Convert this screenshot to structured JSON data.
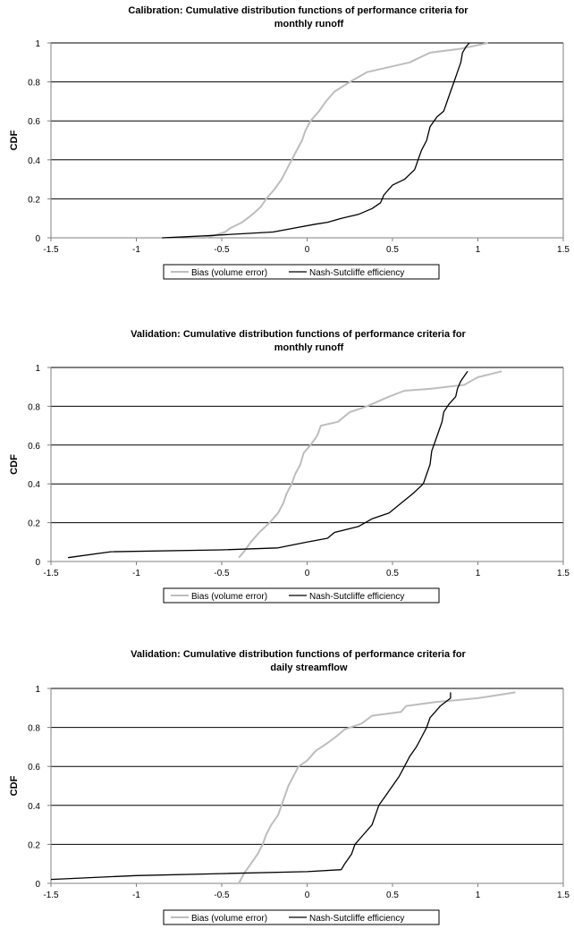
{
  "colors": {
    "bias": "#bdbdbd",
    "nse": "#000000",
    "grid": "#000000",
    "axis": "#808080"
  },
  "chart_data": [
    {
      "type": "line",
      "title_line1": "Calibration:    Cumulative distribution functions of performance criteria for",
      "title_line2": "monthly runoff",
      "xlabel": "",
      "ylabel": "CDF",
      "xlim": [
        -1.5,
        1.5
      ],
      "ylim": [
        0,
        1
      ],
      "x_ticks": [
        "-1.5",
        "-1",
        "-0.5",
        "0",
        "0.5",
        "1",
        "1.5"
      ],
      "y_ticks": [
        "0",
        "0.2",
        "0.4",
        "0.6",
        "0.8",
        "1"
      ],
      "grid": "horizontal",
      "legend_position": "bottom",
      "series": [
        {
          "name": "Bias (volume error)",
          "color": "bias",
          "points": [
            [
              -0.6,
              0.0
            ],
            [
              -0.55,
              0.01
            ],
            [
              -0.48,
              0.03
            ],
            [
              -0.45,
              0.05
            ],
            [
              -0.38,
              0.08
            ],
            [
              -0.32,
              0.12
            ],
            [
              -0.27,
              0.16
            ],
            [
              -0.24,
              0.2
            ],
            [
              -0.19,
              0.25
            ],
            [
              -0.15,
              0.3
            ],
            [
              -0.12,
              0.35
            ],
            [
              -0.09,
              0.4
            ],
            [
              -0.06,
              0.45
            ],
            [
              -0.03,
              0.5
            ],
            [
              -0.01,
              0.55
            ],
            [
              0.02,
              0.6
            ],
            [
              0.07,
              0.65
            ],
            [
              0.11,
              0.7
            ],
            [
              0.16,
              0.75
            ],
            [
              0.25,
              0.8
            ],
            [
              0.35,
              0.85
            ],
            [
              0.5,
              0.88
            ],
            [
              0.6,
              0.9
            ],
            [
              0.72,
              0.95
            ],
            [
              0.9,
              0.97
            ],
            [
              1.06,
              1.0
            ]
          ]
        },
        {
          "name": "Nash-Sutcliffe efficiency",
          "color": "nse",
          "points": [
            [
              -0.85,
              0.0
            ],
            [
              -0.6,
              0.01
            ],
            [
              -0.2,
              0.03
            ],
            [
              0.05,
              0.07
            ],
            [
              0.12,
              0.08
            ],
            [
              0.2,
              0.1
            ],
            [
              0.3,
              0.12
            ],
            [
              0.38,
              0.15
            ],
            [
              0.43,
              0.18
            ],
            [
              0.45,
              0.22
            ],
            [
              0.5,
              0.27
            ],
            [
              0.57,
              0.3
            ],
            [
              0.63,
              0.35
            ],
            [
              0.65,
              0.4
            ],
            [
              0.67,
              0.45
            ],
            [
              0.7,
              0.5
            ],
            [
              0.72,
              0.57
            ],
            [
              0.76,
              0.62
            ],
            [
              0.8,
              0.65
            ],
            [
              0.82,
              0.7
            ],
            [
              0.84,
              0.75
            ],
            [
              0.86,
              0.8
            ],
            [
              0.88,
              0.85
            ],
            [
              0.9,
              0.9
            ],
            [
              0.91,
              0.95
            ],
            [
              0.93,
              0.98
            ],
            [
              0.95,
              1.0
            ]
          ]
        }
      ]
    },
    {
      "type": "line",
      "title_line1": "Validation:    Cumulative distribution functions of performance criteria for",
      "title_line2": "monthly runoff",
      "xlabel": "",
      "ylabel": "CDF",
      "xlim": [
        -1.5,
        1.5
      ],
      "ylim": [
        0,
        1
      ],
      "x_ticks": [
        "-1.5",
        "-1",
        "-0.5",
        "0",
        "0.5",
        "1",
        "1.5"
      ],
      "y_ticks": [
        "0",
        "0.2",
        "0.4",
        "0.6",
        "0.8",
        "1"
      ],
      "grid": "horizontal",
      "legend_position": "bottom",
      "series": [
        {
          "name": "Bias (volume error)",
          "color": "bias",
          "points": [
            [
              -0.4,
              0.02
            ],
            [
              -0.37,
              0.05
            ],
            [
              -0.33,
              0.1
            ],
            [
              -0.28,
              0.15
            ],
            [
              -0.22,
              0.2
            ],
            [
              -0.17,
              0.25
            ],
            [
              -0.14,
              0.3
            ],
            [
              -0.12,
              0.35
            ],
            [
              -0.09,
              0.4
            ],
            [
              -0.07,
              0.45
            ],
            [
              -0.04,
              0.5
            ],
            [
              -0.02,
              0.56
            ],
            [
              0.02,
              0.6
            ],
            [
              0.06,
              0.65
            ],
            [
              0.08,
              0.7
            ],
            [
              0.18,
              0.72
            ],
            [
              0.25,
              0.77
            ],
            [
              0.35,
              0.8
            ],
            [
              0.48,
              0.85
            ],
            [
              0.57,
              0.88
            ],
            [
              0.72,
              0.89
            ],
            [
              0.92,
              0.91
            ],
            [
              1.0,
              0.95
            ],
            [
              1.14,
              0.98
            ]
          ]
        },
        {
          "name": "Nash-Sutcliffe efficiency",
          "color": "nse",
          "points": [
            [
              -1.4,
              0.02
            ],
            [
              -1.15,
              0.05
            ],
            [
              -0.5,
              0.06
            ],
            [
              -0.17,
              0.07
            ],
            [
              0.0,
              0.1
            ],
            [
              0.12,
              0.12
            ],
            [
              0.16,
              0.15
            ],
            [
              0.3,
              0.18
            ],
            [
              0.38,
              0.22
            ],
            [
              0.48,
              0.25
            ],
            [
              0.55,
              0.3
            ],
            [
              0.62,
              0.35
            ],
            [
              0.68,
              0.4
            ],
            [
              0.7,
              0.45
            ],
            [
              0.72,
              0.5
            ],
            [
              0.73,
              0.57
            ],
            [
              0.75,
              0.62
            ],
            [
              0.77,
              0.67
            ],
            [
              0.79,
              0.72
            ],
            [
              0.8,
              0.77
            ],
            [
              0.83,
              0.81
            ],
            [
              0.87,
              0.85
            ],
            [
              0.88,
              0.89
            ],
            [
              0.9,
              0.93
            ],
            [
              0.94,
              0.98
            ]
          ]
        }
      ]
    },
    {
      "type": "line",
      "title_line1": "Validation:    Cumulative distribution functions of performance criteria for",
      "title_line2": "daily streamflow",
      "xlabel": "",
      "ylabel": "CDF",
      "xlim": [
        -1.5,
        1.5
      ],
      "ylim": [
        0,
        1
      ],
      "x_ticks": [
        "-1.5",
        "-1",
        "-0.5",
        "0",
        "0.5",
        "1",
        "1.5"
      ],
      "y_ticks": [
        "0",
        "0.2",
        "0.4",
        "0.6",
        "0.8",
        "1"
      ],
      "grid": "horizontal",
      "legend_position": "bottom",
      "series": [
        {
          "name": "Bias (volume error)",
          "color": "bias",
          "points": [
            [
              -0.4,
              0.0
            ],
            [
              -0.37,
              0.05
            ],
            [
              -0.33,
              0.1
            ],
            [
              -0.29,
              0.15
            ],
            [
              -0.26,
              0.2
            ],
            [
              -0.24,
              0.25
            ],
            [
              -0.21,
              0.3
            ],
            [
              -0.17,
              0.35
            ],
            [
              -0.15,
              0.4
            ],
            [
              -0.13,
              0.45
            ],
            [
              -0.11,
              0.5
            ],
            [
              -0.08,
              0.55
            ],
            [
              -0.05,
              0.6
            ],
            [
              0.0,
              0.63
            ],
            [
              0.05,
              0.68
            ],
            [
              0.12,
              0.72
            ],
            [
              0.18,
              0.76
            ],
            [
              0.22,
              0.79
            ],
            [
              0.32,
              0.82
            ],
            [
              0.38,
              0.86
            ],
            [
              0.55,
              0.88
            ],
            [
              0.58,
              0.91
            ],
            [
              0.75,
              0.93
            ],
            [
              1.0,
              0.95
            ],
            [
              1.22,
              0.98
            ]
          ]
        },
        {
          "name": "Nash-Sutcliffe efficiency",
          "color": "nse",
          "points": [
            [
              -1.5,
              0.02
            ],
            [
              -1.0,
              0.04
            ],
            [
              -0.5,
              0.05
            ],
            [
              0.0,
              0.06
            ],
            [
              0.2,
              0.07
            ],
            [
              0.22,
              0.1
            ],
            [
              0.26,
              0.15
            ],
            [
              0.28,
              0.2
            ],
            [
              0.33,
              0.25
            ],
            [
              0.38,
              0.3
            ],
            [
              0.4,
              0.35
            ],
            [
              0.42,
              0.4
            ],
            [
              0.46,
              0.45
            ],
            [
              0.5,
              0.5
            ],
            [
              0.54,
              0.55
            ],
            [
              0.57,
              0.6
            ],
            [
              0.6,
              0.65
            ],
            [
              0.64,
              0.7
            ],
            [
              0.67,
              0.75
            ],
            [
              0.7,
              0.8
            ],
            [
              0.72,
              0.85
            ],
            [
              0.75,
              0.88
            ],
            [
              0.78,
              0.91
            ],
            [
              0.84,
              0.95
            ],
            [
              0.84,
              0.98
            ]
          ]
        }
      ]
    }
  ]
}
